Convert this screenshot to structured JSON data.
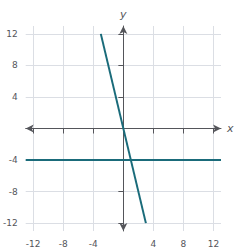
{
  "chart_data": {
    "type": "line",
    "xlabel": "x",
    "ylabel": "y",
    "xlim": [
      -13,
      13
    ],
    "ylim": [
      -13,
      13
    ],
    "xticks": [
      -12,
      -8,
      -4,
      4,
      8,
      12
    ],
    "yticks": [
      -12,
      -8,
      -4,
      4,
      8,
      12
    ],
    "grid": true,
    "series": [
      {
        "x": [
          -13,
          13
        ],
        "values": [
          -4,
          -4
        ],
        "color": "#1a6b7a"
      },
      {
        "x": [
          -3,
          3
        ],
        "values": [
          12,
          -12
        ],
        "color": "#1a6b7a"
      }
    ]
  }
}
